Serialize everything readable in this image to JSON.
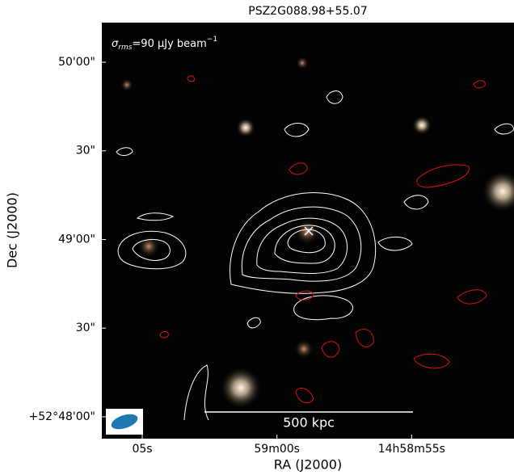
{
  "chart_data": {
    "type": "image",
    "title": "PSZ2G088.98+55.07",
    "annotation": {
      "symbol": "σ",
      "subscript": "rms",
      "text": "=90 μJy beam",
      "superscript": "−1"
    },
    "scale_bar": "500 kpc",
    "xlabel": "RA (J2000)",
    "ylabel": "Dec (J2000)",
    "xlim": [
      224.777083,
      224.713333
    ],
    "ylim": [
      52.797944,
      52.837056
    ],
    "xticks": [
      {
        "value": 224.770833,
        "label": "05s"
      },
      {
        "value": 224.75,
        "label": "59m00s"
      },
      {
        "value": 224.729167,
        "label": "14h58m55s"
      }
    ],
    "yticks": [
      {
        "value": 52.8,
        "label": "+52°48'00\""
      },
      {
        "value": 52.808333,
        "label": "30\""
      },
      {
        "value": 52.816667,
        "label": "49'00\""
      },
      {
        "value": 52.825,
        "label": "30\""
      },
      {
        "value": 52.833333,
        "label": "50'00\""
      }
    ]
  }
}
